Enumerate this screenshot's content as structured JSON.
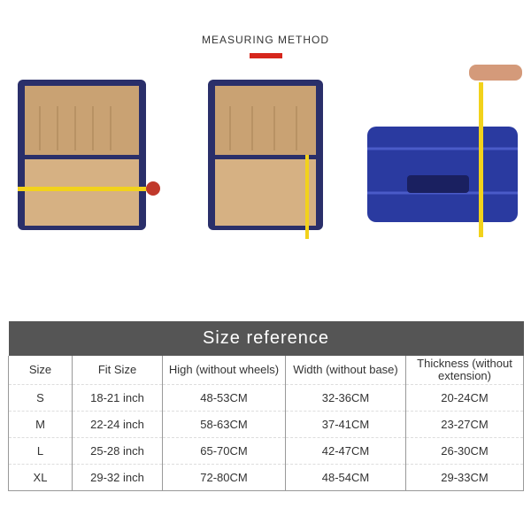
{
  "heading": "MEASURING METHOD",
  "accent": "#d6261c",
  "photos": [
    {
      "icon": "open-suitcase-width-measure-icon"
    },
    {
      "icon": "open-suitcase-depth-measure-icon"
    },
    {
      "icon": "closed-suitcase-height-measure-icon"
    }
  ],
  "table": {
    "title": "Size reference",
    "headers": [
      "Size",
      "Fit Size",
      "High (without wheels)",
      "Width (without base)",
      "Thickness (without extension)"
    ],
    "rows": [
      [
        "S",
        "18-21 inch",
        "48-53CM",
        "32-36CM",
        "20-24CM"
      ],
      [
        "M",
        "22-24 inch",
        "58-63CM",
        "37-41CM",
        "23-27CM"
      ],
      [
        "L",
        "25-28 inch",
        "65-70CM",
        "42-47CM",
        "26-30CM"
      ],
      [
        "XL",
        "29-32 inch",
        "72-80CM",
        "48-54CM",
        "29-33CM"
      ]
    ]
  }
}
